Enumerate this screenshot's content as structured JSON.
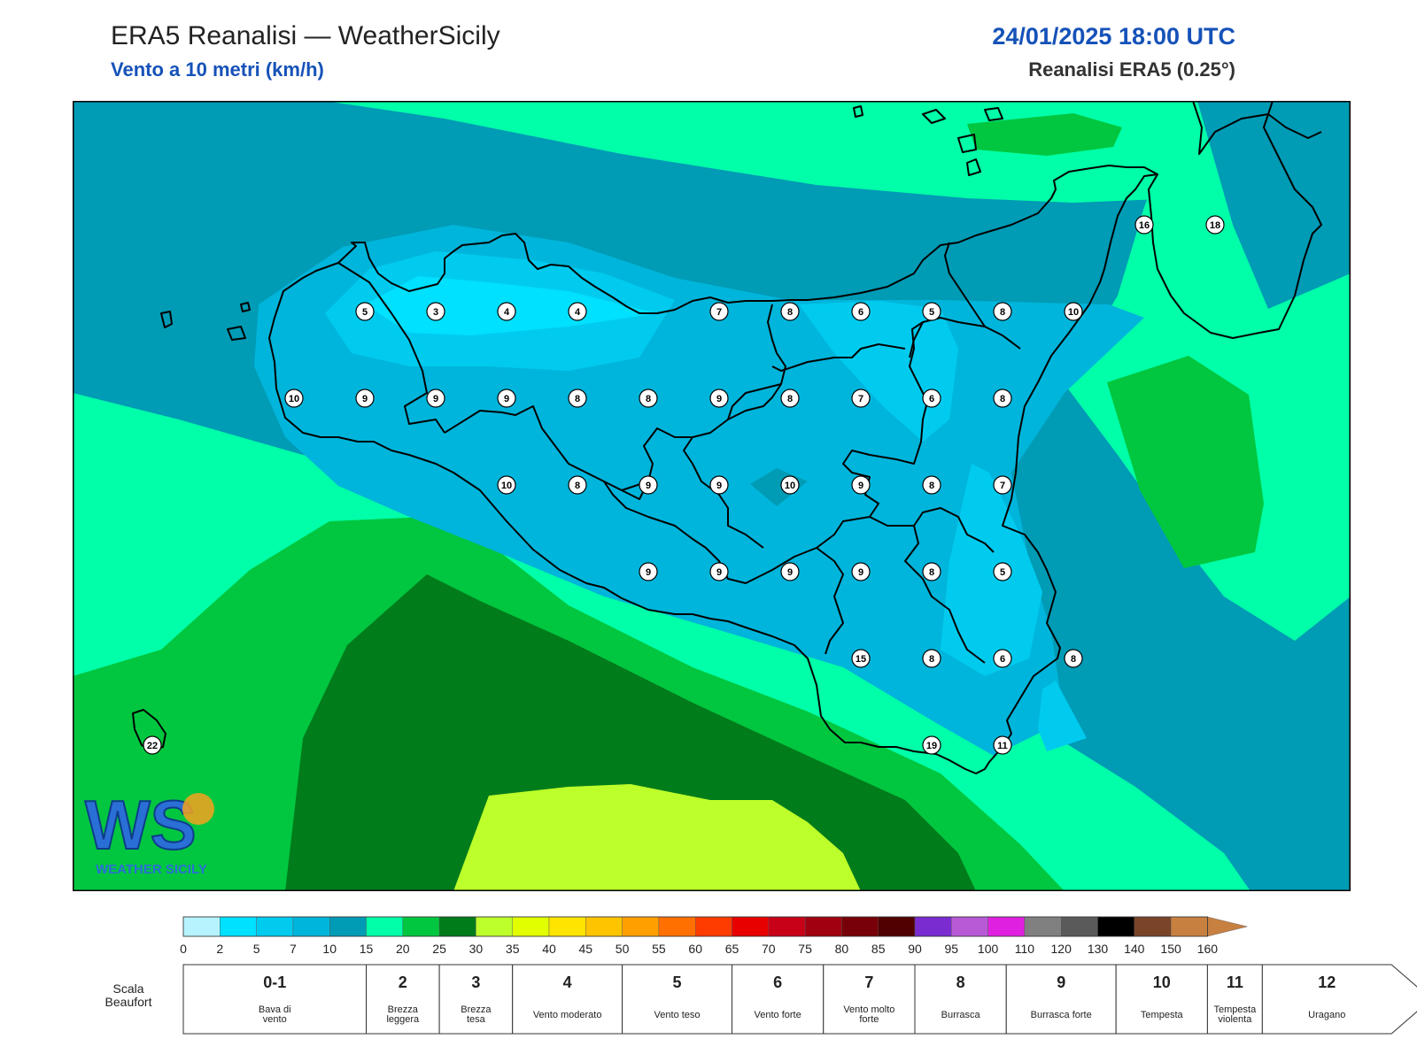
{
  "header": {
    "title": "ERA5 Reanalisi — WeatherSicily",
    "subtitle": "Vento a 10 metri (km/h)",
    "datetime": "24/01/2025 18:00 UTC",
    "source": "Reanalisi ERA5 (0.25°)"
  },
  "logo": {
    "text": "WEATHER SICILY",
    "mark": "WS"
  },
  "colors": {
    "c0": "#b7f3ff",
    "c2": "#00e0ff",
    "c5": "#00cbef",
    "c7": "#00b5db",
    "c10": "#009bb5",
    "c15": "#00ffa8",
    "c20": "#00c73f",
    "c25": "#007c1b",
    "c30": "#bdff2a",
    "coast": "#000000",
    "accent": "#1652b8"
  },
  "stations": [
    {
      "v": "16",
      "lon": 15.25,
      "lat": 38.25
    },
    {
      "v": "18",
      "lon": 15.5,
      "lat": 38.25
    },
    {
      "v": "5",
      "lon": 12.5,
      "lat": 38.0
    },
    {
      "v": "3",
      "lon": 12.75,
      "lat": 38.0
    },
    {
      "v": "4",
      "lon": 13.0,
      "lat": 38.0
    },
    {
      "v": "4",
      "lon": 13.25,
      "lat": 38.0
    },
    {
      "v": "7",
      "lon": 13.75,
      "lat": 38.0
    },
    {
      "v": "8",
      "lon": 14.0,
      "lat": 38.0
    },
    {
      "v": "6",
      "lon": 14.25,
      "lat": 38.0
    },
    {
      "v": "5",
      "lon": 14.5,
      "lat": 38.0
    },
    {
      "v": "8",
      "lon": 14.75,
      "lat": 38.0
    },
    {
      "v": "10",
      "lon": 15.0,
      "lat": 38.0
    },
    {
      "v": "10",
      "lon": 12.25,
      "lat": 37.75
    },
    {
      "v": "9",
      "lon": 12.5,
      "lat": 37.75
    },
    {
      "v": "9",
      "lon": 12.75,
      "lat": 37.75
    },
    {
      "v": "9",
      "lon": 13.0,
      "lat": 37.75
    },
    {
      "v": "8",
      "lon": 13.25,
      "lat": 37.75
    },
    {
      "v": "8",
      "lon": 13.5,
      "lat": 37.75
    },
    {
      "v": "9",
      "lon": 13.75,
      "lat": 37.75
    },
    {
      "v": "8",
      "lon": 14.0,
      "lat": 37.75
    },
    {
      "v": "7",
      "lon": 14.25,
      "lat": 37.75
    },
    {
      "v": "6",
      "lon": 14.5,
      "lat": 37.75
    },
    {
      "v": "8",
      "lon": 14.75,
      "lat": 37.75
    },
    {
      "v": "10",
      "lon": 13.0,
      "lat": 37.5
    },
    {
      "v": "8",
      "lon": 13.25,
      "lat": 37.5
    },
    {
      "v": "9",
      "lon": 13.5,
      "lat": 37.5
    },
    {
      "v": "9",
      "lon": 13.75,
      "lat": 37.5
    },
    {
      "v": "10",
      "lon": 14.0,
      "lat": 37.5
    },
    {
      "v": "9",
      "lon": 14.25,
      "lat": 37.5
    },
    {
      "v": "8",
      "lon": 14.5,
      "lat": 37.5
    },
    {
      "v": "7",
      "lon": 14.75,
      "lat": 37.5
    },
    {
      "v": "9",
      "lon": 13.5,
      "lat": 37.25
    },
    {
      "v": "9",
      "lon": 13.75,
      "lat": 37.25
    },
    {
      "v": "9",
      "lon": 14.0,
      "lat": 37.25
    },
    {
      "v": "9",
      "lon": 14.25,
      "lat": 37.25
    },
    {
      "v": "8",
      "lon": 14.5,
      "lat": 37.25
    },
    {
      "v": "5",
      "lon": 14.75,
      "lat": 37.25
    },
    {
      "v": "15",
      "lon": 14.25,
      "lat": 37.0
    },
    {
      "v": "8",
      "lon": 14.5,
      "lat": 37.0
    },
    {
      "v": "6",
      "lon": 14.75,
      "lat": 37.0
    },
    {
      "v": "8",
      "lon": 15.0,
      "lat": 37.0
    },
    {
      "v": "22",
      "lon": 11.75,
      "lat": 36.75
    },
    {
      "v": "19",
      "lon": 14.5,
      "lat": 36.75
    },
    {
      "v": "11",
      "lon": 14.75,
      "lat": 36.75
    }
  ],
  "legend": {
    "ticks": [
      "0",
      "2",
      "5",
      "7",
      "10",
      "15",
      "20",
      "25",
      "30",
      "35",
      "40",
      "45",
      "50",
      "55",
      "60",
      "65",
      "70",
      "75",
      "80",
      "85",
      "90",
      "95",
      "100",
      "110",
      "120",
      "130",
      "140",
      "150",
      "160"
    ],
    "colors": [
      "#b7f3ff",
      "#00e0ff",
      "#00cbef",
      "#00b5db",
      "#009bb5",
      "#00ffa8",
      "#00c73f",
      "#007c1b",
      "#bdff2a",
      "#e2ff00",
      "#ffe400",
      "#ffc400",
      "#ffa000",
      "#ff7000",
      "#ff3c00",
      "#e80000",
      "#c80018",
      "#a00010",
      "#780008",
      "#500000",
      "#7a2cd0",
      "#b85ad6",
      "#e020e0",
      "#808080",
      "#5a5a5a",
      "#000000",
      "#7a4428",
      "#c88040"
    ],
    "beaufort_caption": "Scala Beaufort",
    "beaufort": [
      {
        "num": "0-1",
        "desc": "Bava di vento",
        "from": 0,
        "to": 5
      },
      {
        "num": "2",
        "desc": "Brezza leggera",
        "from": 5,
        "to": 7
      },
      {
        "num": "3",
        "desc": "Brezza tesa",
        "from": 7,
        "to": 9
      },
      {
        "num": "4",
        "desc": "Vento moderato",
        "from": 9,
        "to": 12
      },
      {
        "num": "5",
        "desc": "Vento teso",
        "from": 12,
        "to": 15
      },
      {
        "num": "6",
        "desc": "Vento forte",
        "from": 15,
        "to": 17.5
      },
      {
        "num": "7",
        "desc": "Vento molto forte",
        "from": 17.5,
        "to": 20
      },
      {
        "num": "8",
        "desc": "Burrasca",
        "from": 20,
        "to": 22.5
      },
      {
        "num": "9",
        "desc": "Burrasca forte",
        "from": 22.5,
        "to": 25.5
      },
      {
        "num": "10",
        "desc": "Tempesta",
        "from": 25.5,
        "to": 28
      },
      {
        "num": "11",
        "desc": "Tempesta violenta",
        "from": 28,
        "to": 29.5
      },
      {
        "num": "12",
        "desc": "Uragano",
        "from": 29.5,
        "to": 34
      }
    ]
  }
}
